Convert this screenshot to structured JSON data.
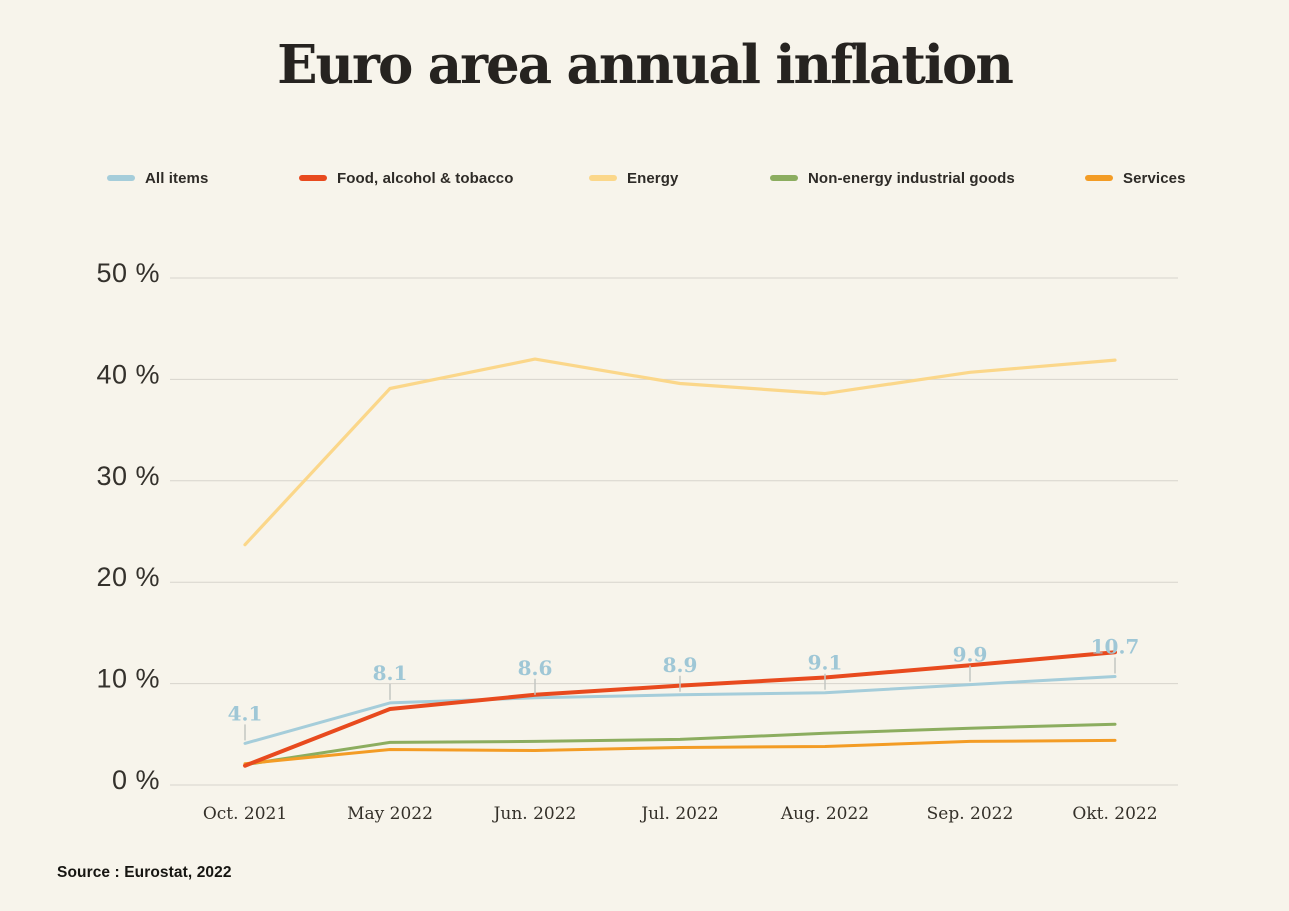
{
  "page": {
    "title": "Euro area annual inflation",
    "source": "Source : Eurostat, 2022",
    "background_color": "#f7f4eb"
  },
  "chart_data": {
    "type": "line",
    "title": "Euro area annual inflation",
    "unit": "%",
    "categories": [
      "Oct. 2021",
      "May 2022",
      "Jun. 2022",
      "Jul. 2022",
      "Aug. 2022",
      "Sep. 2022",
      "Okt. 2022"
    ],
    "y_axis": {
      "ticks": [
        0,
        10,
        20,
        30,
        40,
        50
      ],
      "tick_suffix": " %",
      "min": 0,
      "max": 50
    },
    "grid": true,
    "legend_position": "top",
    "series": [
      {
        "name": "All items",
        "color": "#a5cdda",
        "stroke_width": 3,
        "values": [
          4.1,
          8.1,
          8.6,
          8.9,
          9.1,
          9.9,
          10.7
        ],
        "labels_shown": true,
        "label_color": "#9fc7d6"
      },
      {
        "name": "Food, alcohol & tobacco",
        "color": "#e84a1e",
        "stroke_width": 4,
        "values": [
          1.9,
          7.5,
          8.9,
          9.8,
          10.6,
          11.8,
          13.1
        ],
        "labels_shown": false
      },
      {
        "name": "Energy",
        "color": "#fbd78a",
        "stroke_width": 3.2,
        "values": [
          23.7,
          39.1,
          42.0,
          39.6,
          38.6,
          40.7,
          41.9
        ],
        "labels_shown": false
      },
      {
        "name": "Non-energy industrial goods",
        "color": "#8cad5f",
        "stroke_width": 3,
        "values": [
          2.0,
          4.2,
          4.3,
          4.5,
          5.1,
          5.6,
          6.0
        ],
        "labels_shown": false
      },
      {
        "name": "Services",
        "color": "#f39c25",
        "stroke_width": 3,
        "values": [
          2.1,
          3.5,
          3.4,
          3.7,
          3.8,
          4.3,
          4.4
        ],
        "labels_shown": false
      }
    ]
  }
}
